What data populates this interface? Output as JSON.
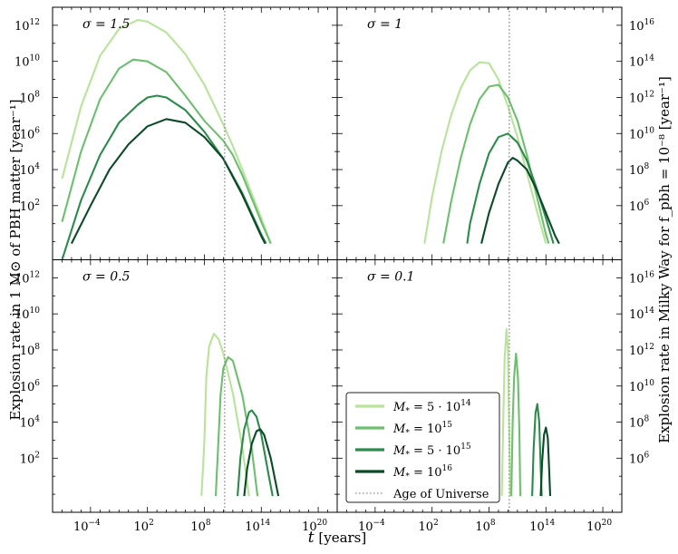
{
  "chart_data": {
    "type": "line",
    "xlabel": "t [years]",
    "ylabel_left": "Explosion rate in 1 M⊙ of PBH matter [year⁻¹]",
    "ylabel_right": "Explosion rate in Milky Way for f_pbh = 10⁻⁸ [year⁻¹]",
    "x_scale": "log",
    "y_scale": "log",
    "xlim": [
      1e-08,
      1e+22
    ],
    "ylim_left": [
      0.1,
      10000000000000.0
    ],
    "ylim_right": [
      1000.0,
      1e+17
    ],
    "x_ticks": [
      "10^-4",
      "10^2",
      "10^8",
      "10^14",
      "10^20"
    ],
    "y_ticks_left": [
      "10^2",
      "10^4",
      "10^6",
      "10^8",
      "10^10",
      "10^12"
    ],
    "y_ticks_right": [
      "10^6",
      "10^8",
      "10^10",
      "10^12",
      "10^14",
      "10^16"
    ],
    "vline": {
      "x": 13800000000.0,
      "label": "Age of Universe",
      "style": "dotted",
      "color": "#888888"
    },
    "series_styles": [
      {
        "name": "M* = 5·10^14",
        "color": "#b8e39b"
      },
      {
        "name": "M* = 10^15",
        "color": "#6dbf6f"
      },
      {
        "name": "M* = 5·10^15",
        "color": "#2a8b4a"
      },
      {
        "name": "M* = 10^16",
        "color": "#0b4a28"
      }
    ],
    "legend": {
      "placement": "lower-left of bottom-right panel",
      "entries": [
        {
          "label": "M* = 5·10^14",
          "math": [
            "M",
            "*",
            " = 5 · 10",
            "14"
          ]
        },
        {
          "label": "M* = 10^15",
          "math": [
            "M",
            "*",
            " = 10",
            "15"
          ]
        },
        {
          "label": "M* = 5·10^15",
          "math": [
            "M",
            "*",
            " = 5 · 10",
            "15"
          ]
        },
        {
          "label": "M* = 10^16",
          "math": [
            "M",
            "*",
            " = 10",
            "16"
          ]
        },
        {
          "label": "Age of Universe",
          "math": null
        }
      ]
    },
    "panels": [
      {
        "label": "σ = 1.5",
        "series": [
          {
            "name": "M* = 5·10^14",
            "points": [
              [
                -7,
                3.5
              ],
              [
                -5,
                7.5
              ],
              [
                -3,
                10.3
              ],
              [
                -1,
                11.8
              ],
              [
                1,
                12.3
              ],
              [
                2,
                12.2
              ],
              [
                4,
                11.6
              ],
              [
                6,
                10.4
              ],
              [
                8,
                8.7
              ],
              [
                10,
                6.5
              ],
              [
                11,
                5.3
              ],
              [
                12,
                4.0
              ],
              [
                14,
                1.3
              ],
              [
                15,
                -0.1
              ]
            ]
          },
          {
            "name": "M* = 10^15",
            "points": [
              [
                -7,
                1.1
              ],
              [
                -5,
                5.0
              ],
              [
                -3,
                7.9
              ],
              [
                -1,
                9.6
              ],
              [
                0.5,
                10.1
              ],
              [
                2,
                10.0
              ],
              [
                4,
                9.4
              ],
              [
                6,
                8.1
              ],
              [
                8,
                6.7
              ],
              [
                10,
                5.6
              ],
              [
                11,
                4.8
              ],
              [
                12,
                3.7
              ],
              [
                14,
                1.1
              ],
              [
                15,
                -0.1
              ]
            ]
          },
          {
            "name": "M* = 5·10^15",
            "points": [
              [
                -7,
                -1.0
              ],
              [
                -5,
                2.3
              ],
              [
                -3,
                4.8
              ],
              [
                -1,
                6.6
              ],
              [
                1,
                7.6
              ],
              [
                2,
                8.0
              ],
              [
                3,
                8.1
              ],
              [
                4,
                8.0
              ],
              [
                6,
                7.3
              ],
              [
                8,
                6.1
              ],
              [
                10,
                4.6
              ],
              [
                12,
                2.7
              ],
              [
                14,
                0.4
              ],
              [
                14.5,
                -0.1
              ]
            ]
          },
          {
            "name": "M* = 10^16",
            "points": [
              [
                -6,
                -0.1
              ],
              [
                -4,
                2.0
              ],
              [
                -2,
                4.0
              ],
              [
                0,
                5.4
              ],
              [
                2,
                6.4
              ],
              [
                4,
                6.8
              ],
              [
                6,
                6.6
              ],
              [
                8,
                5.8
              ],
              [
                10,
                4.6
              ],
              [
                12,
                2.6
              ],
              [
                14,
                0.3
              ],
              [
                14.4,
                -0.1
              ]
            ]
          }
        ]
      },
      {
        "label": "σ = 1",
        "series": [
          {
            "name": "M* = 5·10^14",
            "points": [
              [
                1.2,
                -0.1
              ],
              [
                2,
                2.5
              ],
              [
                3,
                5.0
              ],
              [
                4,
                7.0
              ],
              [
                5,
                8.5
              ],
              [
                6,
                9.5
              ],
              [
                7,
                9.95
              ],
              [
                8,
                9.9
              ],
              [
                9,
                9.0
              ],
              [
                10,
                7.5
              ],
              [
                11,
                5.8
              ],
              [
                12,
                3.8
              ],
              [
                13,
                1.8
              ],
              [
                14,
                -0.1
              ]
            ]
          },
          {
            "name": "M* = 10^15",
            "points": [
              [
                3.2,
                -0.1
              ],
              [
                4,
                2.2
              ],
              [
                5,
                4.6
              ],
              [
                6,
                6.5
              ],
              [
                7,
                7.9
              ],
              [
                8,
                8.6
              ],
              [
                9,
                8.7
              ],
              [
                10,
                8.0
              ],
              [
                11,
                6.7
              ],
              [
                12,
                4.8
              ],
              [
                13,
                2.6
              ],
              [
                14,
                0.4
              ],
              [
                14.3,
                -0.1
              ]
            ]
          },
          {
            "name": "M* = 5·10^15",
            "points": [
              [
                5.7,
                -0.1
              ],
              [
                6,
                1.0
              ],
              [
                7,
                3.2
              ],
              [
                8,
                4.9
              ],
              [
                9,
                5.8
              ],
              [
                10,
                6.0
              ],
              [
                11,
                5.5
              ],
              [
                12,
                4.5
              ],
              [
                13,
                3.0
              ],
              [
                14,
                1.3
              ],
              [
                14.8,
                -0.1
              ]
            ]
          },
          {
            "name": "M* = 10^16",
            "points": [
              [
                7.2,
                -0.1
              ],
              [
                8,
                1.6
              ],
              [
                9,
                3.2
              ],
              [
                10,
                4.4
              ],
              [
                10.5,
                4.65
              ],
              [
                11,
                4.5
              ],
              [
                12,
                4.0
              ],
              [
                13,
                2.9
              ],
              [
                14,
                1.6
              ],
              [
                15,
                0.3
              ],
              [
                15.4,
                -0.1
              ]
            ]
          }
        ]
      },
      {
        "label": "σ = 0.5",
        "series": [
          {
            "name": "M* = 5·10^14",
            "points": [
              [
                7.7,
                -0.1
              ],
              [
                8,
                3.0
              ],
              [
                8.2,
                6.5
              ],
              [
                8.5,
                8.2
              ],
              [
                9,
                8.9
              ],
              [
                9.5,
                8.6
              ],
              [
                10,
                7.8
              ],
              [
                11,
                5.6
              ],
              [
                12,
                2.6
              ],
              [
                12.7,
                -0.1
              ]
            ]
          },
          {
            "name": "M* = 10^15",
            "points": [
              [
                9.2,
                -0.1
              ],
              [
                9.5,
                3.2
              ],
              [
                9.7,
                5.5
              ],
              [
                10,
                7.0
              ],
              [
                10.5,
                7.6
              ],
              [
                11,
                7.4
              ],
              [
                12,
                5.5
              ],
              [
                13,
                2.5
              ],
              [
                13.6,
                -0.1
              ]
            ]
          },
          {
            "name": "M* = 5·10^15",
            "points": [
              [
                11.5,
                -0.1
              ],
              [
                11.8,
                2.0
              ],
              [
                12.2,
                3.6
              ],
              [
                12.7,
                4.55
              ],
              [
                13,
                4.65
              ],
              [
                13.5,
                4.3
              ],
              [
                14,
                3.3
              ],
              [
                14.8,
                1.0
              ],
              [
                15.2,
                -0.1
              ]
            ]
          },
          {
            "name": "M* = 10^16",
            "points": [
              [
                12.2,
                -0.1
              ],
              [
                12.5,
                1.4
              ],
              [
                13,
                2.8
              ],
              [
                13.5,
                3.5
              ],
              [
                13.9,
                3.6
              ],
              [
                14.3,
                3.3
              ],
              [
                15,
                2.0
              ],
              [
                15.8,
                -0.1
              ]
            ]
          }
        ]
      },
      {
        "label": "σ = 0.1",
        "series": [
          {
            "name": "M* = 5·10^14",
            "points": [
              [
                9.35,
                -0.1
              ],
              [
                9.5,
                4.0
              ],
              [
                9.65,
                7.5
              ],
              [
                9.85,
                9.15
              ],
              [
                10.0,
                8.0
              ],
              [
                10.1,
                4.5
              ],
              [
                10.25,
                -0.1
              ]
            ]
          },
          {
            "name": "M* = 10^15",
            "points": [
              [
                10.35,
                -0.1
              ],
              [
                10.5,
                4.0
              ],
              [
                10.65,
                6.5
              ],
              [
                10.85,
                7.8
              ],
              [
                11.05,
                6.5
              ],
              [
                11.2,
                3.5
              ],
              [
                11.3,
                -0.1
              ]
            ]
          },
          {
            "name": "M* = 5·10^15",
            "points": [
              [
                12.55,
                -0.1
              ],
              [
                12.7,
                2.5
              ],
              [
                12.9,
                4.5
              ],
              [
                13.1,
                5.0
              ],
              [
                13.3,
                4.0
              ],
              [
                13.45,
                1.5
              ],
              [
                13.55,
                -0.1
              ]
            ]
          },
          {
            "name": "M* = 10^16",
            "points": [
              [
                13.45,
                -0.1
              ],
              [
                13.6,
                1.8
              ],
              [
                13.8,
                3.3
              ],
              [
                14.0,
                3.7
              ],
              [
                14.2,
                3.1
              ],
              [
                14.35,
                1.3
              ],
              [
                14.45,
                -0.1
              ]
            ]
          }
        ]
      }
    ]
  }
}
